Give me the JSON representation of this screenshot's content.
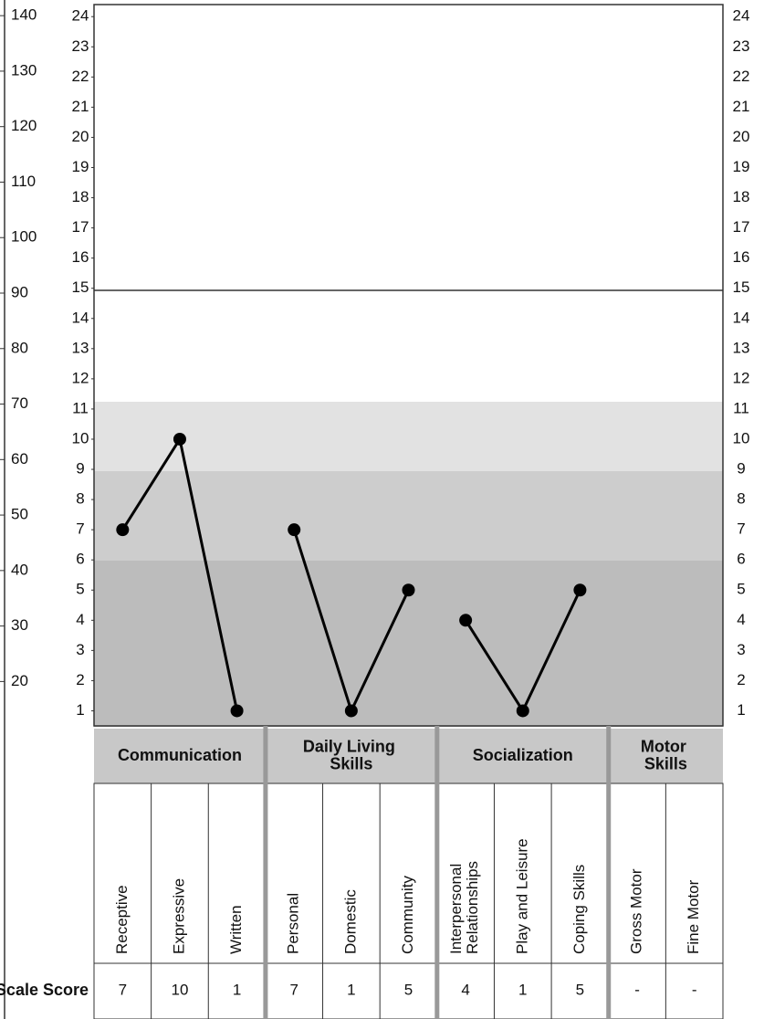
{
  "chart_data": {
    "type": "line",
    "ylim": [
      0.5,
      24.4
    ],
    "yticks": [
      1,
      2,
      3,
      4,
      5,
      6,
      7,
      8,
      9,
      10,
      11,
      12,
      13,
      14,
      15,
      16,
      17,
      18,
      19,
      20,
      21,
      22,
      23,
      24
    ],
    "y2lim": [
      12,
      142
    ],
    "y2ticks": [
      20,
      30,
      40,
      50,
      60,
      70,
      80,
      90,
      100,
      110,
      120,
      130,
      140
    ],
    "color": "#000000",
    "score_label": "v-Scale Score",
    "domains": [
      {
        "name": "Communication",
        "categories": [
          "Receptive",
          "Expressive",
          "Written"
        ],
        "values": [
          7,
          10,
          1
        ]
      },
      {
        "name": "Daily Living Skills",
        "categories": [
          "Personal",
          "Domestic",
          "Community"
        ],
        "values": [
          7,
          1,
          5
        ]
      },
      {
        "name": "Socialization",
        "categories": [
          "Interpersonal Relationships",
          "Play and Leisure",
          "Coping Skills"
        ],
        "values": [
          4,
          1,
          5
        ]
      },
      {
        "name": "Motor Skills",
        "categories": [
          "Gross Motor",
          "Fine Motor"
        ],
        "values": [
          null,
          null
        ],
        "value_labels": [
          "-",
          "-"
        ]
      }
    ]
  }
}
